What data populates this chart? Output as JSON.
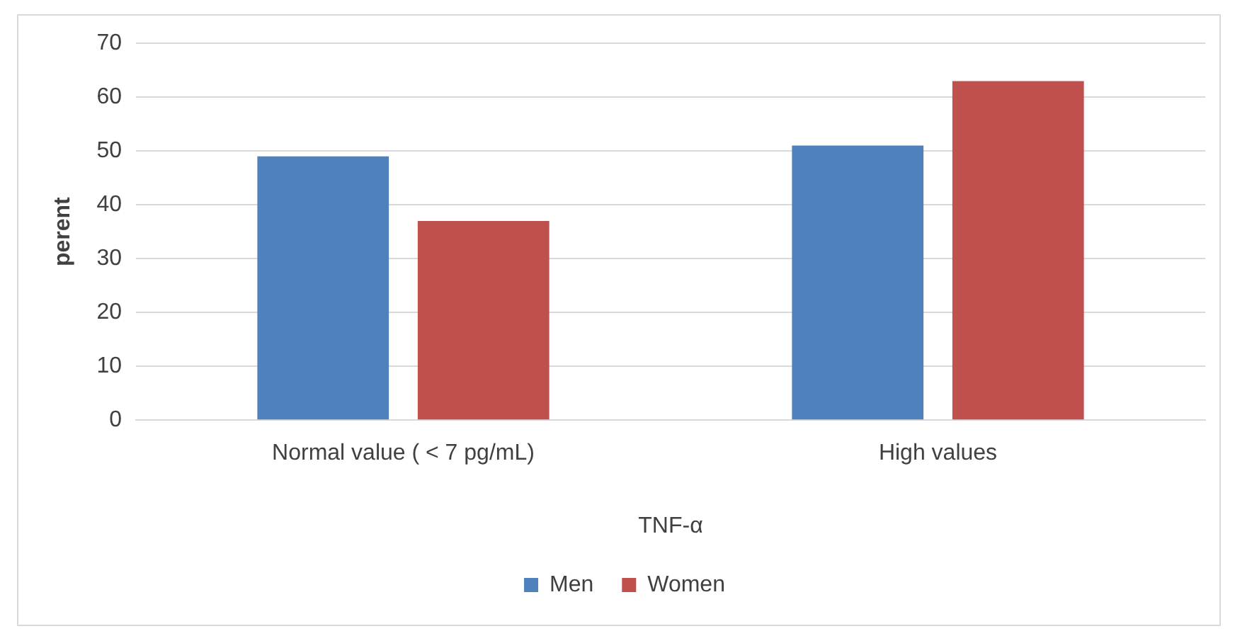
{
  "chart_data": {
    "type": "bar",
    "categories": [
      "Normal value ( < 7 pg/mL)",
      "High values"
    ],
    "xlabel": "TNF-α",
    "ylabel": "perent",
    "series": [
      {
        "name": "Men",
        "color": "#4f81bd",
        "values": [
          49,
          51
        ]
      },
      {
        "name": "Women",
        "color": "#c0504d",
        "values": [
          37,
          63
        ]
      }
    ],
    "ylim": [
      0,
      70
    ],
    "yticks": [
      0,
      10,
      20,
      30,
      40,
      50,
      60,
      70
    ],
    "grid": "y",
    "legend": "bottom"
  }
}
